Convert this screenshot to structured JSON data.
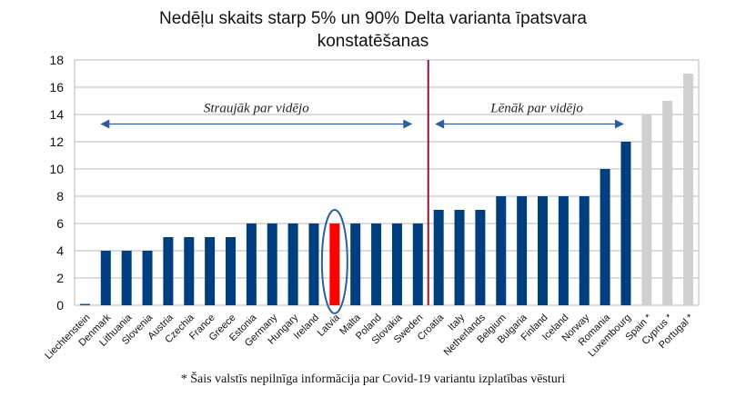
{
  "chart_data": {
    "type": "bar",
    "title": "Nedēļu skaits starp 5% un 90% Delta varianta īpatsvara",
    "subtitle": "konstatēšanas",
    "categories": [
      "Liechtenstein",
      "Denmark",
      "Lithuania",
      "Slovenia",
      "Austria",
      "Czechia",
      "France",
      "Greece",
      "Estonia",
      "Germany",
      "Hungary",
      "Ireland",
      "Latvia",
      "Malta",
      "Poland",
      "Slovakia",
      "Sweden",
      "Croatia",
      "Italy",
      "Netherlands",
      "Belgium",
      "Bulgaria",
      "Finland",
      "Iceland",
      "Norway",
      "Romania",
      "Luxembourg",
      "Spain *",
      "Cyprus *",
      "Portugal *"
    ],
    "values": [
      0,
      4,
      4,
      4,
      5,
      5,
      5,
      5,
      6,
      6,
      6,
      6,
      6,
      6,
      6,
      6,
      6,
      7,
      7,
      7,
      8,
      8,
      8,
      8,
      8,
      10,
      12,
      14,
      15,
      17
    ],
    "bar_colors": [
      "#1f4e79",
      "#003f7f",
      "#003f7f",
      "#003f7f",
      "#003f7f",
      "#003f7f",
      "#003f7f",
      "#003f7f",
      "#003f7f",
      "#003f7f",
      "#003f7f",
      "#003f7f",
      "#ff0000",
      "#003f7f",
      "#003f7f",
      "#003f7f",
      "#003f7f",
      "#003f7f",
      "#003f7f",
      "#003f7f",
      "#003f7f",
      "#003f7f",
      "#003f7f",
      "#003f7f",
      "#003f7f",
      "#003f7f",
      "#003f7f",
      "#d0d0d0",
      "#d0d0d0",
      "#d0d0d0"
    ],
    "highlight": "Latvia",
    "ylim": [
      0,
      18
    ],
    "yticks": [
      0,
      2,
      4,
      6,
      8,
      10,
      12,
      14,
      16,
      18
    ],
    "grid": true,
    "annotations": {
      "left": "Straujāk par vidējo",
      "right": "Lēnāk par vidējo"
    },
    "divider_after": "Sweden",
    "footnote": "* Šais valstīs nepilnīga informācija par Covid-19 variantu izplatības vēsturi"
  },
  "colors": {
    "bar": "#003f7f",
    "highlight": "#ff0000",
    "incomplete": "#d0d0d0",
    "divider": "#8b1a3a",
    "arrow": "#2e5f9a",
    "ellipse": "#2e5f9a",
    "grid": "#b8b8b8"
  }
}
